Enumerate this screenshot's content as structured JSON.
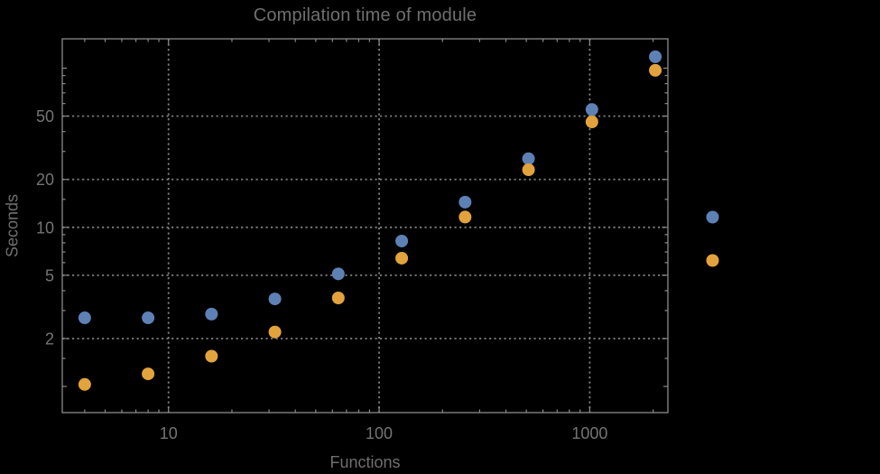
{
  "title": "Compilation time of module",
  "colors": {
    "background": "#000000",
    "frame": "#8a8a8a",
    "gridline": "#7d7d7d",
    "tick": "#8a8a8a",
    "text": "#6f6f6f",
    "tick_label": "#747474",
    "series_blue": "#5E81B5",
    "series_orange": "#E3A33C"
  },
  "chart_data": {
    "type": "scatter",
    "title": "Compilation time of module",
    "xlabel": "Functions",
    "ylabel": "Seconds",
    "xscale": "log",
    "yscale": "log",
    "grid": true,
    "grid_style": "dotted",
    "legend_position": "right-of-frame",
    "xlim": [
      3.13,
      2350
    ],
    "ylim": [
      0.685,
      153
    ],
    "x": [
      4,
      8,
      16,
      32,
      64,
      128,
      256,
      512,
      1024,
      2048
    ],
    "series": [
      {
        "name": "blue-series",
        "color": "#5E81B5",
        "values": [
          2.7,
          2.7,
          2.85,
          3.55,
          5.1,
          8.2,
          14.4,
          27,
          55,
          118
        ]
      },
      {
        "name": "orange-series",
        "color": "#E3A33C",
        "values": [
          1.03,
          1.2,
          1.55,
          2.2,
          3.6,
          6.4,
          11.6,
          23,
          46,
          97
        ]
      }
    ],
    "x_major_ticks": [
      10,
      100,
      1000
    ],
    "x_tick_labels": [
      "10",
      "100",
      "1000"
    ],
    "x_minor_ticks": [
      4,
      5,
      6,
      7,
      8,
      9,
      20,
      30,
      40,
      50,
      60,
      70,
      80,
      90,
      200,
      300,
      400,
      500,
      600,
      700,
      800,
      900,
      2000
    ],
    "y_major_ticks": [
      2,
      5,
      10,
      20,
      50
    ],
    "y_tick_labels": [
      "2",
      "5",
      "10",
      "20",
      "50"
    ],
    "y_minor_ticks": [
      1,
      1.5,
      3,
      4,
      6,
      7,
      8,
      9,
      15,
      30,
      40,
      60,
      70,
      80,
      90,
      100
    ],
    "legend_markers": [
      {
        "name": "blue-series",
        "color": "#5E81B5"
      },
      {
        "name": "orange-series",
        "color": "#E3A33C"
      }
    ]
  }
}
